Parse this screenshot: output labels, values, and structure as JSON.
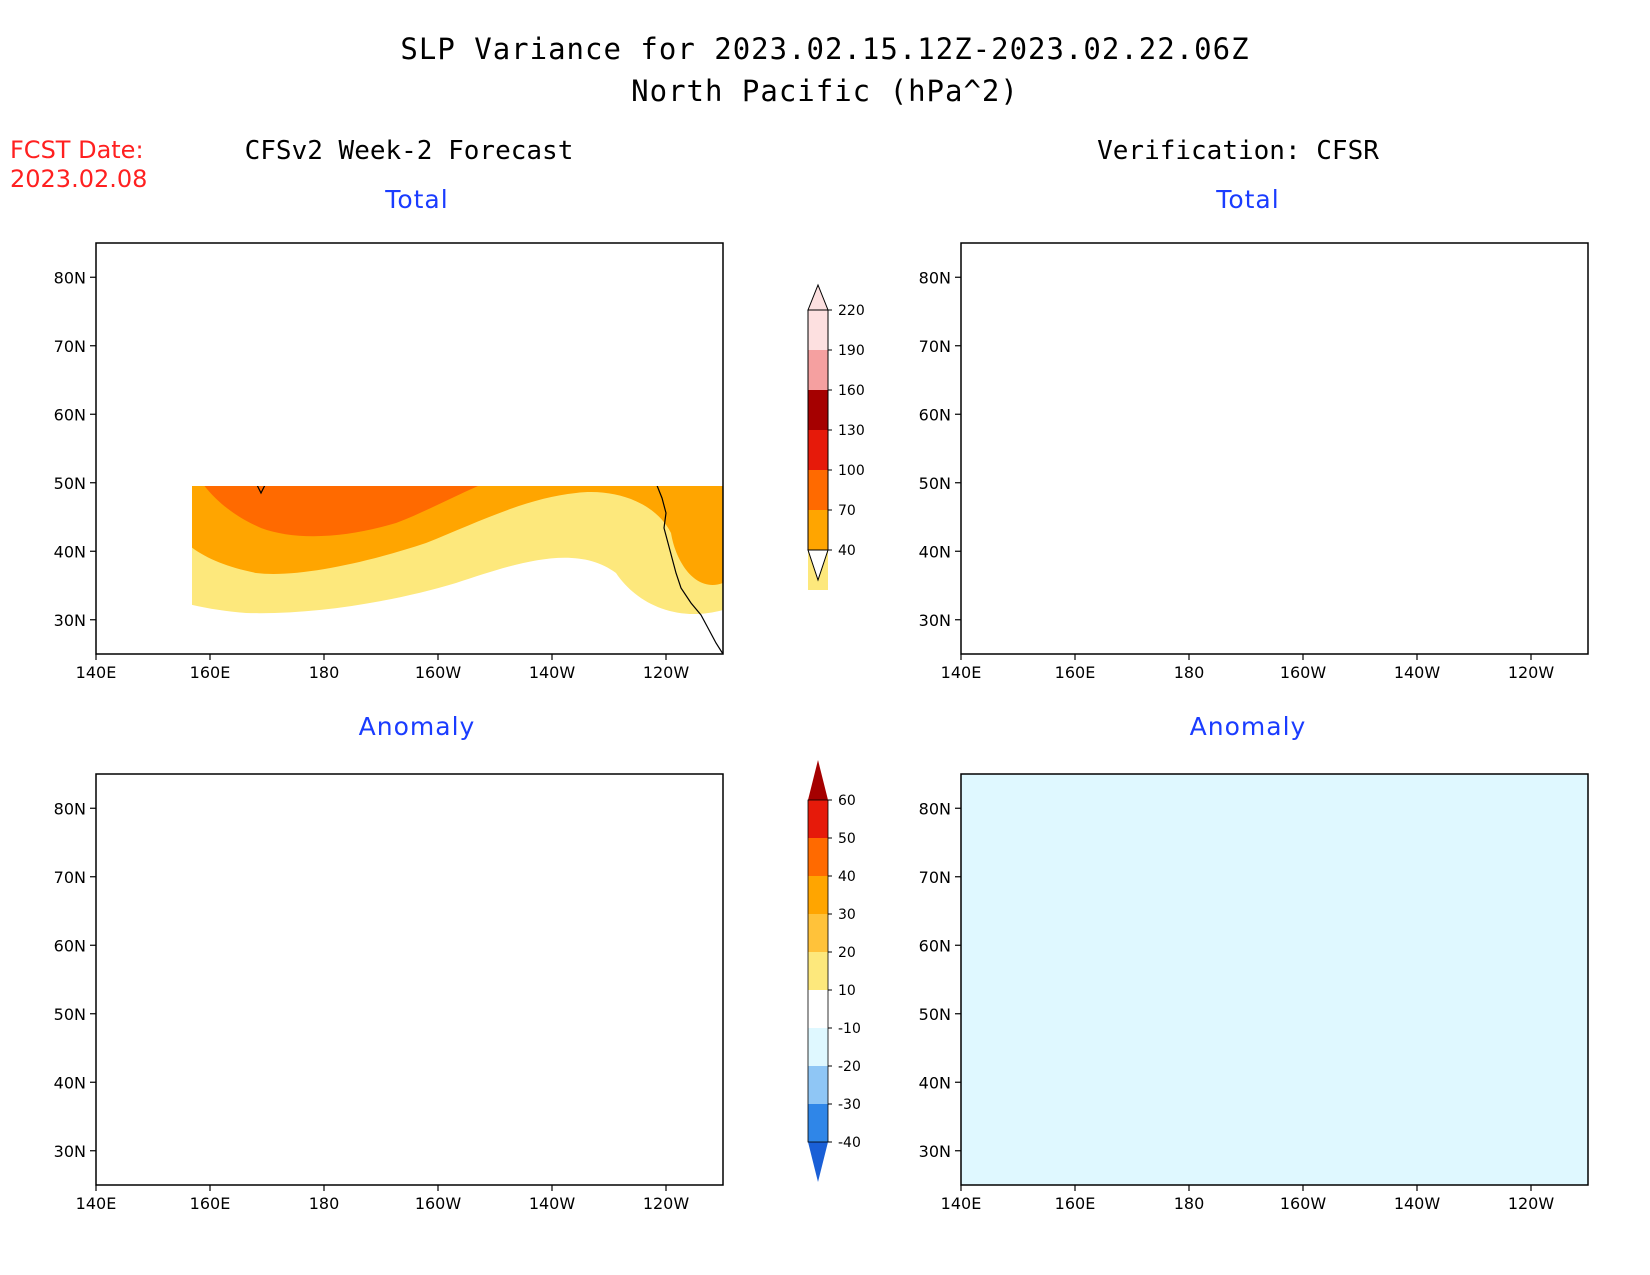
{
  "header": {
    "title_line1": "SLP Variance for 2023.02.15.12Z-2023.02.22.06Z",
    "title_line2": "North Pacific (hPa^2)",
    "fcst_label": "FCST Date:",
    "fcst_date": "2023.02.08"
  },
  "columns": {
    "left": "CFSv2 Week-2 Forecast",
    "right": "Verification: CFSR"
  },
  "panels": {
    "top_left_label": "Total",
    "top_right_label": "Total",
    "bottom_left_label": "Anomaly",
    "bottom_right_label": "Anomaly"
  },
  "axes": {
    "lat_ticks": [
      "80N",
      "70N",
      "60N",
      "50N",
      "40N",
      "30N"
    ],
    "lon_ticks": [
      "140E",
      "160E",
      "180",
      "160W",
      "140W",
      "120W"
    ]
  },
  "legends": {
    "total": {
      "levels": [
        "40",
        "70",
        "100",
        "130",
        "160",
        "190",
        "220"
      ],
      "colors": [
        "#fde87c",
        "#ffa500",
        "#ff6a00",
        "#e61a0a",
        "#a50000",
        "#f5a0a0",
        "#fde0e0"
      ]
    },
    "anomaly": {
      "levels": [
        "-40",
        "-30",
        "-20",
        "-10",
        "10",
        "20",
        "30",
        "40",
        "50",
        "60"
      ],
      "colors": [
        "#1a5fd6",
        "#2f86e8",
        "#8fc6f5",
        "#dff8ff",
        "#ffffff",
        "#fde87c",
        "#ffc23a",
        "#ffa500",
        "#ff6a00",
        "#e61a0a",
        "#a50000"
      ]
    }
  },
  "palette": {
    "very_light_pink": "#fde0e0",
    "light_pink": "#f5a0a0",
    "dark_red": "#a50000",
    "red": "#e61a0a",
    "orange_red": "#ff6a00",
    "orange": "#ffa500",
    "yellow": "#fde87c",
    "light_orange": "#ffc23a",
    "ice": "#dff8ff",
    "light_blue": "#8fc6f5",
    "mid_blue": "#2f86e8",
    "dark_blue": "#1a5fd6"
  }
}
